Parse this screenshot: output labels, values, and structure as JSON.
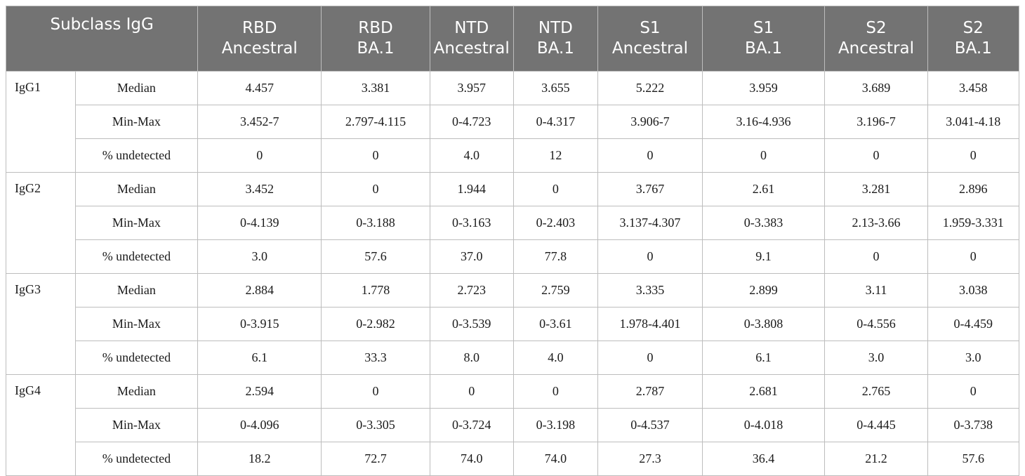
{
  "header": {
    "subclass": "Subclass IgG",
    "columns": [
      {
        "line1": "RBD",
        "line2": "Ancestral"
      },
      {
        "line1": "RBD",
        "line2": "BA.1"
      },
      {
        "line1": "NTD",
        "line2": "Ancestral"
      },
      {
        "line1": "NTD",
        "line2": "BA.1"
      },
      {
        "line1": "S1",
        "line2": "Ancestral"
      },
      {
        "line1": "S1",
        "line2": "BA.1"
      },
      {
        "line1": "S2",
        "line2": "Ancestral"
      },
      {
        "line1": "S2",
        "line2": "BA.1"
      }
    ]
  },
  "groups": [
    {
      "name": "IgG1",
      "rows": [
        {
          "stat": "Median",
          "values": [
            "4.457",
            "3.381",
            "3.957",
            "3.655",
            "5.222",
            "3.959",
            "3.689",
            "3.458"
          ]
        },
        {
          "stat": "Min-Max",
          "values": [
            "3.452-7",
            "2.797-4.115",
            "0-4.723",
            "0-4.317",
            "3.906-7",
            "3.16-4.936",
            "3.196-7",
            "3.041-4.18"
          ]
        },
        {
          "stat": "% undetected",
          "values": [
            "0",
            "0",
            "4.0",
            "12",
            "0",
            "0",
            "0",
            "0"
          ]
        }
      ]
    },
    {
      "name": "IgG2",
      "rows": [
        {
          "stat": "Median",
          "values": [
            "3.452",
            "0",
            "1.944",
            "0",
            "3.767",
            "2.61",
            "3.281",
            "2.896"
          ]
        },
        {
          "stat": "Min-Max",
          "values": [
            "0-4.139",
            "0-3.188",
            "0-3.163",
            "0-2.403",
            "3.137-4.307",
            "0-3.383",
            "2.13-3.66",
            "1.959-3.331"
          ]
        },
        {
          "stat": "% undetected",
          "values": [
            "3.0",
            "57.6",
            "37.0",
            "77.8",
            "0",
            "9.1",
            "0",
            "0"
          ]
        }
      ]
    },
    {
      "name": "IgG3",
      "rows": [
        {
          "stat": "Median",
          "values": [
            "2.884",
            "1.778",
            "2.723",
            "2.759",
            "3.335",
            "2.899",
            "3.11",
            "3.038"
          ]
        },
        {
          "stat": "Min-Max",
          "values": [
            "0-3.915",
            "0-2.982",
            "0-3.539",
            "0-3.61",
            "1.978-4.401",
            "0-3.808",
            "0-4.556",
            "0-4.459"
          ]
        },
        {
          "stat": "% undetected",
          "values": [
            "6.1",
            "33.3",
            "8.0",
            "4.0",
            "0",
            "6.1",
            "3.0",
            "3.0"
          ]
        }
      ]
    },
    {
      "name": "IgG4",
      "rows": [
        {
          "stat": "Median",
          "values": [
            "2.594",
            "0",
            "0",
            "0",
            "2.787",
            "2.681",
            "2.765",
            "0"
          ]
        },
        {
          "stat": "Min-Max",
          "values": [
            "0-4.096",
            "0-3.305",
            "0-3.724",
            "0-3.198",
            "0-4.537",
            "0-4.018",
            "0-4.445",
            "0-3.738"
          ]
        },
        {
          "stat": "% undetected",
          "values": [
            "18.2",
            "72.7",
            "74.0",
            "74.0",
            "27.3",
            "36.4",
            "21.2",
            "57.6"
          ]
        }
      ]
    }
  ]
}
